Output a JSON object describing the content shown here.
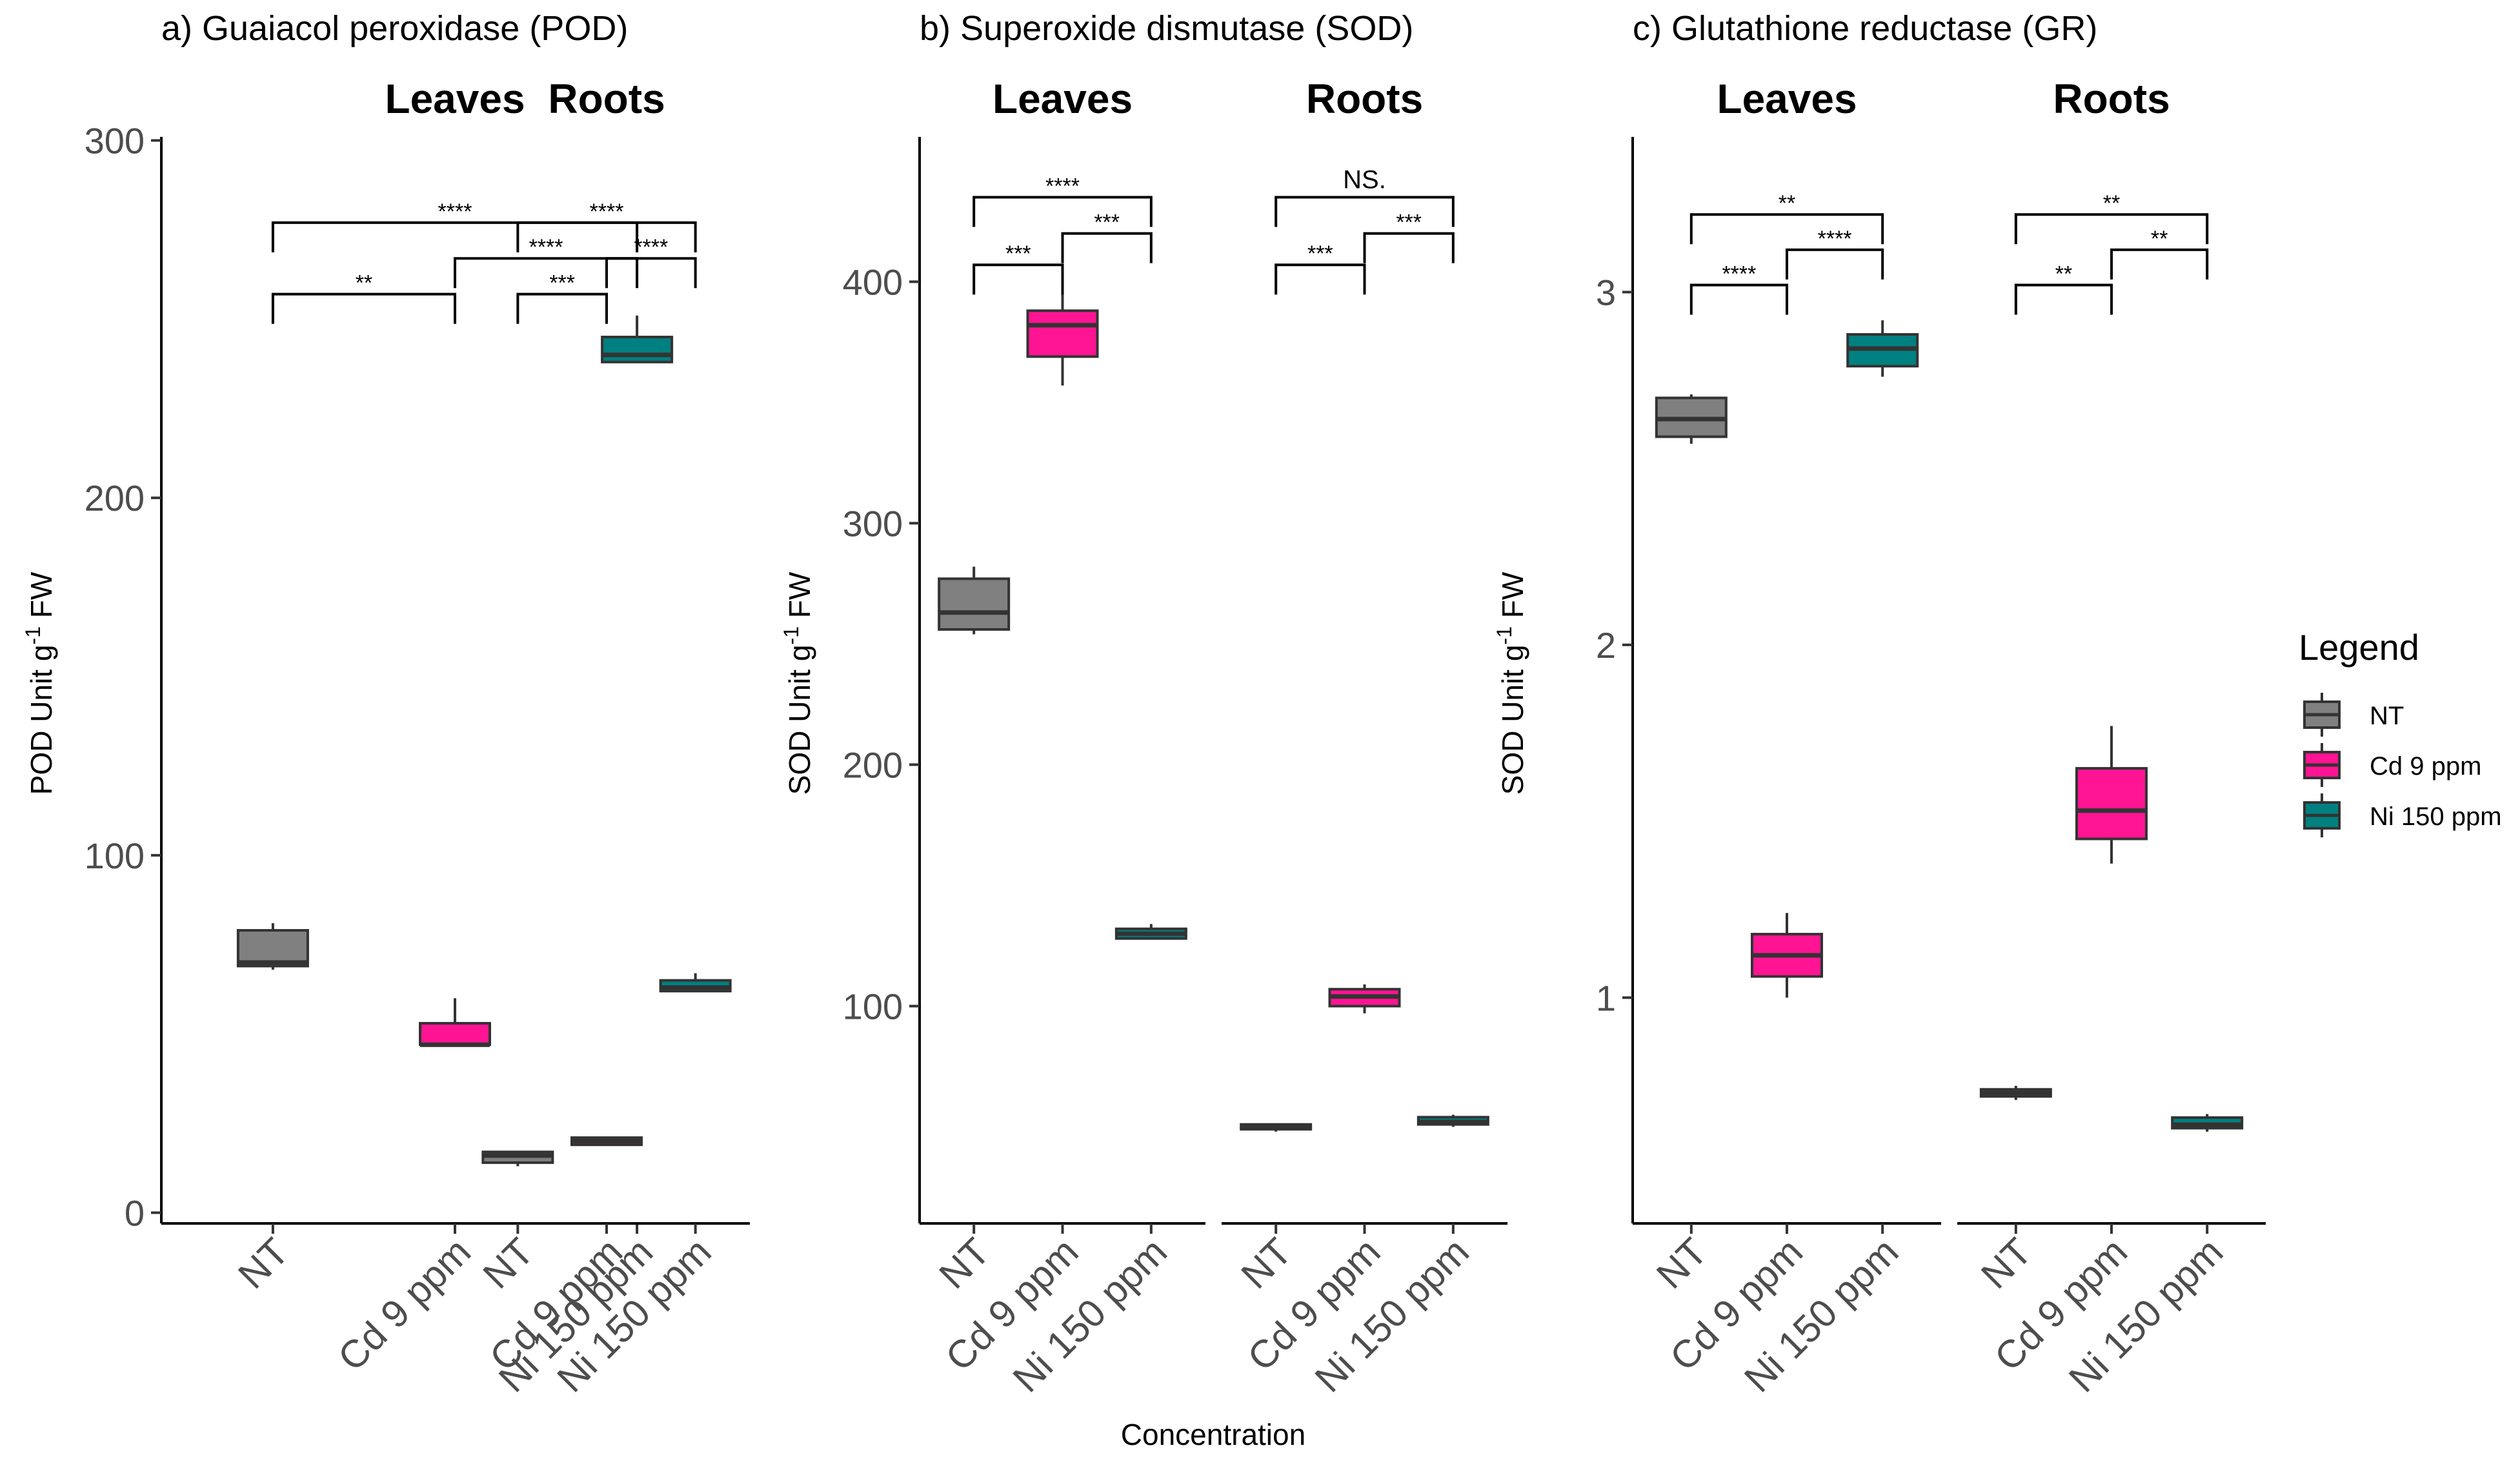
{
  "x_axis_title": "Concentration",
  "legend": {
    "title": "Legend",
    "entries": [
      {
        "label": "NT",
        "color": "#808080"
      },
      {
        "label": "Cd 9 ppm",
        "color": "#ff1493"
      },
      {
        "label": "Ni 150 ppm",
        "color": "#008080"
      }
    ]
  },
  "chart_data": [
    {
      "type": "boxplot",
      "title": "a) Guaiacol peroxidase (POD)",
      "ylabel_main": "POD Unit g",
      "ylabel_sup": "-1",
      "ylabel_tail": " FW",
      "ylim": [
        -3,
        301
      ],
      "yticks": [
        0,
        100,
        200,
        300
      ],
      "categories": [
        "NT",
        "Cd 9 ppm",
        "Ni 150 ppm"
      ],
      "facets": [
        {
          "name": "Leaves",
          "boxes": [
            {
              "group": "NT",
              "min": 68,
              "q1": 69,
              "median": 70,
              "q3": 79,
              "max": 81
            },
            {
              "group": "Cd 9 ppm",
              "min": 47,
              "q1": 47,
              "median": 47,
              "q3": 53,
              "max": 60
            },
            {
              "group": "Ni 150 ppm",
              "min": 238,
              "q1": 238,
              "median": 240,
              "q3": 245,
              "max": 251
            }
          ],
          "brackets": [
            {
              "from": 0,
              "to": 1,
              "y": 257,
              "label": "**"
            },
            {
              "from": 1,
              "to": 2,
              "y": 267,
              "label": "****"
            },
            {
              "from": 0,
              "to": 2,
              "y": 277,
              "label": "****"
            }
          ]
        },
        {
          "name": "Roots",
          "boxes": [
            {
              "group": "NT",
              "min": 13,
              "q1": 14,
              "median": 16,
              "q3": 17,
              "max": 17
            },
            {
              "group": "Cd 9 ppm",
              "min": 19,
              "q1": 19,
              "median": 20,
              "q3": 21,
              "max": 21
            },
            {
              "group": "Ni 150 ppm",
              "min": 62,
              "q1": 62,
              "median": 63,
              "q3": 65,
              "max": 67
            }
          ],
          "brackets": [
            {
              "from": 0,
              "to": 1,
              "y": 257,
              "label": "***"
            },
            {
              "from": 1,
              "to": 2,
              "y": 267,
              "label": "****"
            },
            {
              "from": 0,
              "to": 2,
              "y": 277,
              "label": "****"
            }
          ]
        }
      ]
    },
    {
      "type": "boxplot",
      "title": "b) Superoxide dismutase (SOD)",
      "ylabel_main": "SOD Unit g",
      "ylabel_sup": "-1",
      "ylabel_tail": " FW",
      "ylim": [
        10,
        460
      ],
      "yticks": [
        100,
        200,
        300,
        400
      ],
      "categories": [
        "NT",
        "Cd 9 ppm",
        "Ni 150 ppm"
      ],
      "facets": [
        {
          "name": "Leaves",
          "boxes": [
            {
              "group": "NT",
              "min": 254,
              "q1": 256,
              "median": 263,
              "q3": 277,
              "max": 282
            },
            {
              "group": "Cd 9 ppm",
              "min": 357,
              "q1": 369,
              "median": 382,
              "q3": 388,
              "max": 395
            },
            {
              "group": "Ni 150 ppm",
              "min": 128,
              "q1": 128,
              "median": 130,
              "q3": 132,
              "max": 134
            }
          ],
          "brackets": [
            {
              "from": 0,
              "to": 1,
              "y": 407,
              "label": "***"
            },
            {
              "from": 1,
              "to": 2,
              "y": 420,
              "label": "***"
            },
            {
              "from": 0,
              "to": 2,
              "y": 435,
              "label": "****"
            }
          ]
        },
        {
          "name": "Roots",
          "boxes": [
            {
              "group": "NT",
              "min": 48,
              "q1": 49,
              "median": 50,
              "q3": 51,
              "max": 51
            },
            {
              "group": "Cd 9 ppm",
              "min": 97,
              "q1": 100,
              "median": 104,
              "q3": 107,
              "max": 109
            },
            {
              "group": "Ni 150 ppm",
              "min": 50,
              "q1": 51,
              "median": 52,
              "q3": 54,
              "max": 55
            }
          ],
          "brackets": [
            {
              "from": 0,
              "to": 1,
              "y": 407,
              "label": "***"
            },
            {
              "from": 1,
              "to": 2,
              "y": 420,
              "label": "***"
            },
            {
              "from": 0,
              "to": 2,
              "y": 435,
              "label": "NS."
            }
          ]
        }
      ]
    },
    {
      "type": "boxplot",
      "title": "c) Glutathione reductase (GR)",
      "ylabel_main": "SOD Unit g",
      "ylabel_sup": "-1",
      "ylabel_tail": " FW",
      "ylim": [
        0.36,
        3.44
      ],
      "yticks": [
        1,
        2,
        3
      ],
      "categories": [
        "NT",
        "Cd 9 ppm",
        "Ni 150 ppm"
      ],
      "facets": [
        {
          "name": "Leaves",
          "boxes": [
            {
              "group": "NT",
              "min": 2.57,
              "q1": 2.59,
              "median": 2.64,
              "q3": 2.7,
              "max": 2.71
            },
            {
              "group": "Cd 9 ppm",
              "min": 1.0,
              "q1": 1.06,
              "median": 1.12,
              "q3": 1.18,
              "max": 1.24
            },
            {
              "group": "Ni 150 ppm",
              "min": 2.76,
              "q1": 2.79,
              "median": 2.84,
              "q3": 2.88,
              "max": 2.92
            }
          ],
          "brackets": [
            {
              "from": 0,
              "to": 1,
              "y": 3.02,
              "label": "****"
            },
            {
              "from": 1,
              "to": 2,
              "y": 3.12,
              "label": "****"
            },
            {
              "from": 0,
              "to": 2,
              "y": 3.22,
              "label": "**"
            }
          ]
        },
        {
          "name": "Roots",
          "boxes": [
            {
              "group": "NT",
              "min": 0.71,
              "q1": 0.72,
              "median": 0.73,
              "q3": 0.74,
              "max": 0.75
            },
            {
              "group": "Cd 9 ppm",
              "min": 1.38,
              "q1": 1.45,
              "median": 1.53,
              "q3": 1.65,
              "max": 1.77
            },
            {
              "group": "Ni 150 ppm",
              "min": 0.62,
              "q1": 0.63,
              "median": 0.64,
              "q3": 0.66,
              "max": 0.67
            }
          ],
          "brackets": [
            {
              "from": 0,
              "to": 1,
              "y": 3.02,
              "label": "**"
            },
            {
              "from": 1,
              "to": 2,
              "y": 3.12,
              "label": "**"
            },
            {
              "from": 0,
              "to": 2,
              "y": 3.22,
              "label": "**"
            }
          ]
        }
      ]
    }
  ]
}
